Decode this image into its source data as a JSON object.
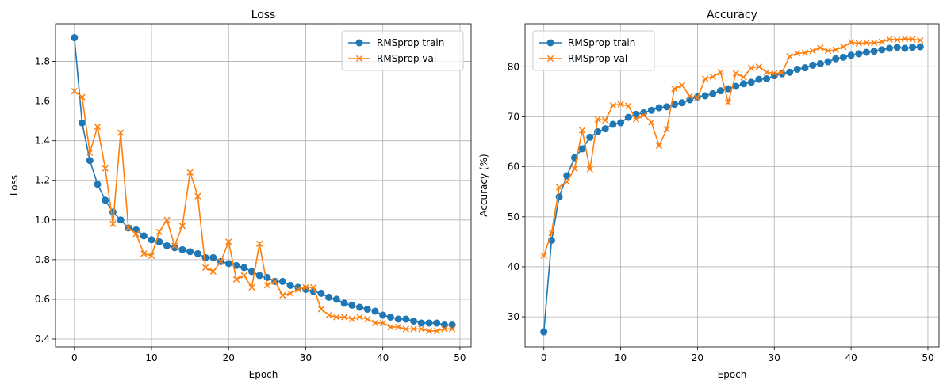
{
  "chart_data": [
    {
      "type": "line",
      "title": "Loss",
      "xlabel": "Epoch",
      "ylabel": "Loss",
      "xlim": [
        -2.45,
        51.45
      ],
      "ylim": [
        0.36,
        1.99
      ],
      "xticks": [
        0,
        10,
        20,
        30,
        40,
        50
      ],
      "xtick_labels": [
        "0",
        "10",
        "20",
        "30",
        "40",
        "50"
      ],
      "yticks": [
        0.4,
        0.6,
        0.8,
        1.0,
        1.2,
        1.4,
        1.6,
        1.8
      ],
      "ytick_labels": [
        "0.4",
        "0.6",
        "0.8",
        "1.0",
        "1.2",
        "1.4",
        "1.6",
        "1.8"
      ],
      "grid": true,
      "legend_position": "upper-right",
      "x": [
        0,
        1,
        2,
        3,
        4,
        5,
        6,
        7,
        8,
        9,
        10,
        11,
        12,
        13,
        14,
        15,
        16,
        17,
        18,
        19,
        20,
        21,
        22,
        23,
        24,
        25,
        26,
        27,
        28,
        29,
        30,
        31,
        32,
        33,
        34,
        35,
        36,
        37,
        38,
        39,
        40,
        41,
        42,
        43,
        44,
        45,
        46,
        47,
        48,
        49
      ],
      "series": [
        {
          "name": "RMSprop train",
          "color": "#1f77b4",
          "marker": "circle",
          "values": [
            1.92,
            1.49,
            1.3,
            1.18,
            1.1,
            1.04,
            1.0,
            0.96,
            0.95,
            0.92,
            0.9,
            0.89,
            0.87,
            0.86,
            0.85,
            0.84,
            0.83,
            0.81,
            0.81,
            0.79,
            0.78,
            0.77,
            0.76,
            0.74,
            0.72,
            0.71,
            0.69,
            0.69,
            0.67,
            0.66,
            0.65,
            0.64,
            0.63,
            0.61,
            0.6,
            0.58,
            0.57,
            0.56,
            0.55,
            0.54,
            0.52,
            0.51,
            0.5,
            0.5,
            0.49,
            0.48,
            0.48,
            0.48,
            0.47,
            0.47
          ]
        },
        {
          "name": "RMSprop val",
          "color": "#ff7f0e",
          "marker": "x",
          "values": [
            1.65,
            1.62,
            1.34,
            1.47,
            1.26,
            0.98,
            1.44,
            0.96,
            0.93,
            0.83,
            0.82,
            0.94,
            1.0,
            0.87,
            0.97,
            1.24,
            1.12,
            0.76,
            0.74,
            0.79,
            0.89,
            0.7,
            0.72,
            0.66,
            0.88,
            0.67,
            0.69,
            0.62,
            0.63,
            0.65,
            0.66,
            0.66,
            0.55,
            0.52,
            0.51,
            0.51,
            0.5,
            0.51,
            0.5,
            0.48,
            0.48,
            0.46,
            0.46,
            0.45,
            0.45,
            0.45,
            0.44,
            0.44,
            0.45,
            0.45
          ]
        }
      ]
    },
    {
      "type": "line",
      "title": "Accuracy",
      "xlabel": "Epoch",
      "ylabel": "Accuracy (%)",
      "xlim": [
        -2.45,
        51.45
      ],
      "ylim": [
        24.0,
        88.6
      ],
      "xticks": [
        0,
        10,
        20,
        30,
        40,
        50
      ],
      "xtick_labels": [
        "0",
        "10",
        "20",
        "30",
        "40",
        "50"
      ],
      "yticks": [
        30,
        40,
        50,
        60,
        70,
        80
      ],
      "ytick_labels": [
        "30",
        "40",
        "50",
        "60",
        "70",
        "80"
      ],
      "grid": true,
      "legend_position": "upper-left",
      "x": [
        0,
        1,
        2,
        3,
        4,
        5,
        6,
        7,
        8,
        9,
        10,
        11,
        12,
        13,
        14,
        15,
        16,
        17,
        18,
        19,
        20,
        21,
        22,
        23,
        24,
        25,
        26,
        27,
        28,
        29,
        30,
        31,
        32,
        33,
        34,
        35,
        36,
        37,
        38,
        39,
        40,
        41,
        42,
        43,
        44,
        45,
        46,
        47,
        48,
        49
      ],
      "series": [
        {
          "name": "RMSprop train",
          "color": "#1f77b4",
          "marker": "circle",
          "values": [
            27.0,
            45.3,
            54.0,
            58.2,
            61.8,
            63.6,
            65.9,
            67.0,
            67.6,
            68.5,
            68.8,
            69.9,
            70.5,
            70.8,
            71.3,
            71.8,
            72.0,
            72.5,
            72.8,
            73.4,
            74.0,
            74.2,
            74.6,
            75.2,
            75.6,
            76.1,
            76.6,
            76.9,
            77.5,
            77.6,
            78.2,
            78.6,
            78.9,
            79.5,
            79.8,
            80.3,
            80.6,
            81.0,
            81.6,
            81.9,
            82.3,
            82.6,
            82.9,
            83.1,
            83.4,
            83.7,
            83.9,
            83.7,
            83.9,
            84.0
          ]
        },
        {
          "name": "RMSprop val",
          "color": "#ff7f0e",
          "marker": "x",
          "values": [
            42.2,
            46.8,
            55.9,
            57.0,
            59.6,
            67.3,
            59.5,
            69.5,
            69.3,
            72.3,
            72.5,
            72.2,
            69.5,
            70.3,
            68.9,
            64.2,
            67.5,
            75.6,
            76.3,
            74.1,
            73.8,
            77.6,
            78.0,
            78.9,
            72.9,
            78.7,
            77.9,
            79.8,
            80.0,
            78.9,
            78.7,
            78.8,
            82.1,
            82.7,
            82.8,
            83.2,
            83.8,
            83.2,
            83.4,
            84.0,
            84.9,
            84.7,
            84.8,
            84.8,
            85.0,
            85.5,
            85.4,
            85.6,
            85.5,
            85.3
          ]
        }
      ]
    }
  ]
}
